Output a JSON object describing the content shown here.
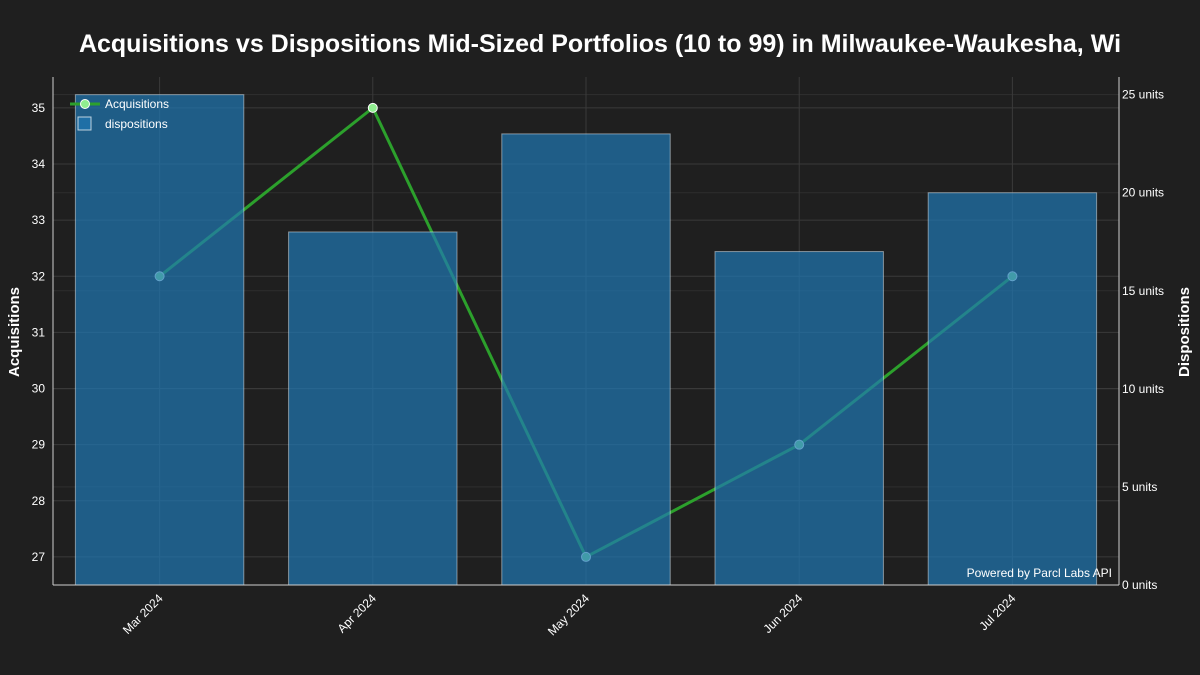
{
  "chart_data": {
    "type": "bar",
    "title": "Acquisitions vs Dispositions Mid-Sized Portfolios (10 to 99) in Milwaukee-Waukesha, Wi",
    "categories": [
      "Mar 2024",
      "Apr 2024",
      "May 2024",
      "Jun 2024",
      "Jul 2024"
    ],
    "series": [
      {
        "name": "Acquisitions",
        "type": "line",
        "axis": "left",
        "values": [
          32,
          35,
          27,
          29,
          32
        ],
        "color": "#2ca02c"
      },
      {
        "name": "dispositions",
        "type": "bar",
        "axis": "right",
        "values": [
          25,
          18,
          23,
          17,
          20
        ],
        "color": "#1f77b4"
      }
    ],
    "y_left": {
      "label": "Acquisitions",
      "range": [
        26.5,
        35.55
      ],
      "ticks": [
        27,
        28,
        29,
        30,
        31,
        32,
        33,
        34,
        35
      ],
      "tick_labels": [
        "27",
        "28",
        "29",
        "30",
        "31",
        "32",
        "33",
        "34",
        "35"
      ]
    },
    "y_right": {
      "label": "Dispositions",
      "range": [
        0,
        25.9
      ],
      "ticks": [
        0,
        5,
        10,
        15,
        20,
        25
      ],
      "tick_labels": [
        "0 units",
        "5 units",
        "10 units",
        "15 units",
        "20 units",
        "25 units"
      ]
    },
    "grid": true,
    "legend_position": "top-left",
    "watermark": "Powered by Parcl Labs API",
    "colors": {
      "background": "#1f1f1f",
      "grid": "#3a3a3a",
      "axis": "#cfcfcf",
      "text": "#ffffff"
    }
  }
}
